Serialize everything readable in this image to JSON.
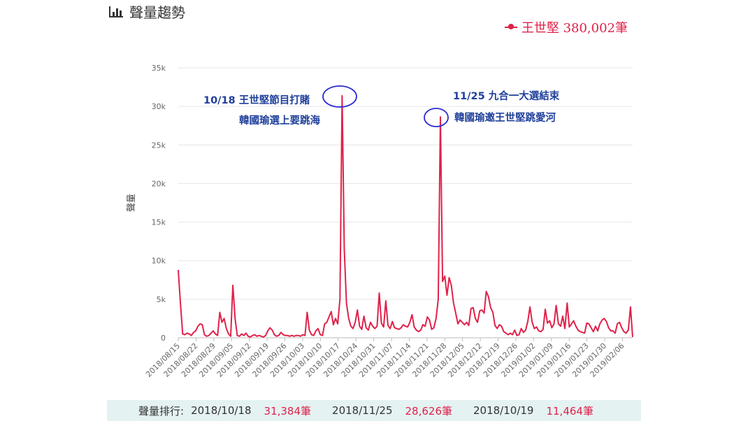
{
  "header": {
    "title": "聲量趨勢",
    "icon": "bar-chart-icon"
  },
  "legend": {
    "label": "王世堅 380,002筆",
    "color": "#e0224a"
  },
  "annotations": {
    "first_line1": "10/18 王世堅節目打賭",
    "first_line2": "韓國瑜選上要跳海",
    "second_line1": "11/25 九合一大選結束",
    "second_line2": "韓國瑜邀王世堅跳愛河"
  },
  "ranking": {
    "label": "聲量排行:",
    "items": [
      {
        "date": "2018/10/18",
        "value": "31,384筆"
      },
      {
        "date": "2018/11/25",
        "value": "28,626筆"
      },
      {
        "date": "2018/10/19",
        "value": "11,464筆"
      }
    ]
  },
  "chart_data": {
    "type": "line",
    "ylabel": "聲量",
    "xlabel": "",
    "ylim": [
      0,
      35000
    ],
    "yticks": [
      "0",
      "5k",
      "10k",
      "15k",
      "20k",
      "25k",
      "30k",
      "35k"
    ],
    "grid": true,
    "legend_position": "top-right",
    "x_tick_labels": [
      "2018/08/15",
      "2018/08/22",
      "2018/08/29",
      "2018/09/05",
      "2018/09/12",
      "2018/09/19",
      "2018/09/26",
      "2018/10/03",
      "2018/10/10",
      "2018/10/17",
      "2018/10/24",
      "2018/10/31",
      "2018/11/07",
      "2018/11/14",
      "2018/11/21",
      "2018/11/28",
      "2018/12/05",
      "2018/12/12",
      "2018/12/19",
      "2018/12/26",
      "2019/01/02",
      "2019/01/09",
      "2019/01/16",
      "2019/01/23",
      "2019/01/30",
      "2019/02/06"
    ],
    "start_date": "2018/08/15",
    "end_date": "2019/02/10",
    "series": [
      {
        "name": "王世堅",
        "color": "#e0224a",
        "values": [
          8800,
          4500,
          500,
          400,
          600,
          500,
          300,
          700,
          900,
          1500,
          1800,
          1700,
          400,
          200,
          300,
          600,
          900,
          500,
          300,
          3300,
          2000,
          2500,
          1200,
          500,
          200,
          6800,
          2500,
          300,
          200,
          500,
          300,
          600,
          200,
          100,
          300,
          400,
          200,
          300,
          200,
          100,
          300,
          900,
          1300,
          1000,
          400,
          200,
          300,
          700,
          400,
          300,
          300,
          200,
          300,
          200,
          300,
          300,
          200,
          400,
          300,
          3300,
          1000,
          400,
          300,
          900,
          1200,
          400,
          300,
          1800,
          2000,
          2700,
          3400,
          1700,
          2500,
          1800,
          5000,
          31384,
          11464,
          4500,
          2500,
          1500,
          1200,
          2000,
          3600,
          1500,
          1100,
          2800,
          1300,
          1000,
          2000,
          1500,
          1200,
          1500,
          5800,
          1900,
          1400,
          4800,
          1600,
          1200,
          2100,
          1300,
          1200,
          1100,
          1300,
          1700,
          1500,
          1400,
          2000,
          3000,
          1400,
          1000,
          800,
          1000,
          1700,
          1500,
          2700,
          2300,
          1100,
          1300,
          2500,
          5000,
          28626,
          7300,
          8000,
          5500,
          7800,
          6800,
          4500,
          3200,
          1800,
          2300,
          2000,
          1700,
          2000,
          1600,
          3800,
          3900,
          2500,
          2000,
          3500,
          3600,
          3200,
          6000,
          5300,
          3900,
          3300,
          1600,
          1200,
          1700,
          1500,
          800,
          600,
          400,
          600,
          400,
          1000,
          300,
          400,
          1200,
          700,
          1000,
          2100,
          4000,
          2000,
          1200,
          1400,
          900,
          800,
          1100,
          3700,
          1900,
          2200,
          1300,
          1800,
          4200,
          1800,
          1500,
          2800,
          1200,
          4500,
          1400,
          1800,
          2200,
          1500,
          1000,
          800,
          700,
          600,
          1900,
          1800,
          1300,
          800,
          1500,
          900,
          1800,
          2300,
          2500,
          2100,
          1300,
          900,
          900,
          600,
          1800,
          2000,
          1300,
          800,
          600,
          1000,
          4000,
          100
        ]
      }
    ]
  }
}
